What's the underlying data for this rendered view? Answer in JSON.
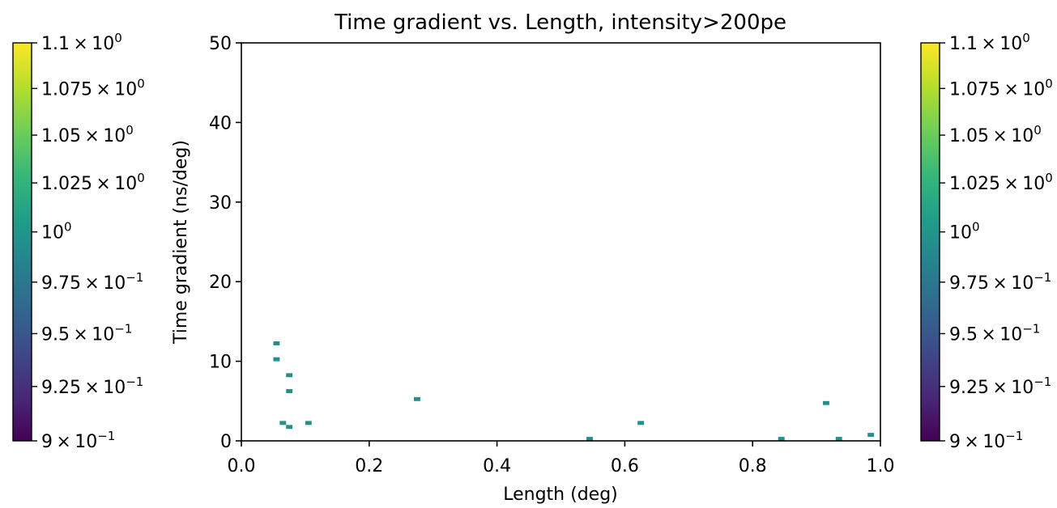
{
  "chart_data": {
    "type": "heatmap",
    "title": "Time gradient vs. Length, intensity>200pe",
    "xlabel": "Length (deg)",
    "ylabel": "Time gradient (ns/deg)",
    "xlim": [
      0.0,
      1.0
    ],
    "ylim": [
      0,
      50
    ],
    "x_ticks": [
      "0.0",
      "0.2",
      "0.4",
      "0.6",
      "0.8",
      "1.0"
    ],
    "y_ticks": [
      "0",
      "10",
      "20",
      "30",
      "40",
      "50"
    ],
    "bin_width_x": 0.01,
    "bin_height_y": 0.5,
    "cells": [
      {
        "x": 0.055,
        "y": 12.25,
        "count": 1
      },
      {
        "x": 0.055,
        "y": 10.25,
        "count": 1
      },
      {
        "x": 0.075,
        "y": 8.25,
        "count": 1
      },
      {
        "x": 0.075,
        "y": 6.25,
        "count": 1
      },
      {
        "x": 0.065,
        "y": 2.25,
        "count": 1
      },
      {
        "x": 0.075,
        "y": 1.75,
        "count": 1
      },
      {
        "x": 0.105,
        "y": 2.25,
        "count": 1
      },
      {
        "x": 0.275,
        "y": 5.25,
        "count": 1
      },
      {
        "x": 0.545,
        "y": 0.25,
        "count": 1
      },
      {
        "x": 0.625,
        "y": 2.25,
        "count": 1
      },
      {
        "x": 0.845,
        "y": 0.25,
        "count": 1
      },
      {
        "x": 0.915,
        "y": 4.75,
        "count": 1
      },
      {
        "x": 0.935,
        "y": 0.25,
        "count": 1
      },
      {
        "x": 0.985,
        "y": 0.75,
        "count": 1
      }
    ],
    "colorbar": {
      "scale": "log",
      "range": [
        0.9,
        1.1
      ],
      "ticks": [
        {
          "value": 1.1,
          "mant": "1.1",
          "exp": "0"
        },
        {
          "value": 1.075,
          "mant": "1.075",
          "exp": "0"
        },
        {
          "value": 1.05,
          "mant": "1.05",
          "exp": "0"
        },
        {
          "value": 1.025,
          "mant": "1.025",
          "exp": "0"
        },
        {
          "value": 1.0,
          "mant": "",
          "exp": "0"
        },
        {
          "value": 0.975,
          "mant": "9.75",
          "exp": "−1"
        },
        {
          "value": 0.95,
          "mant": "9.5",
          "exp": "−1"
        },
        {
          "value": 0.925,
          "mant": "9.25",
          "exp": "−1"
        },
        {
          "value": 0.9,
          "mant": "9",
          "exp": "−1"
        }
      ],
      "colormap": "viridis"
    },
    "grid": false
  },
  "colors": {
    "cell": "#21918c",
    "axis": "#000000",
    "viridis": [
      "#440154",
      "#482878",
      "#3e4989",
      "#31688e",
      "#26828e",
      "#1f9e89",
      "#35b779",
      "#6ece58",
      "#b5de2b",
      "#fde725"
    ]
  }
}
